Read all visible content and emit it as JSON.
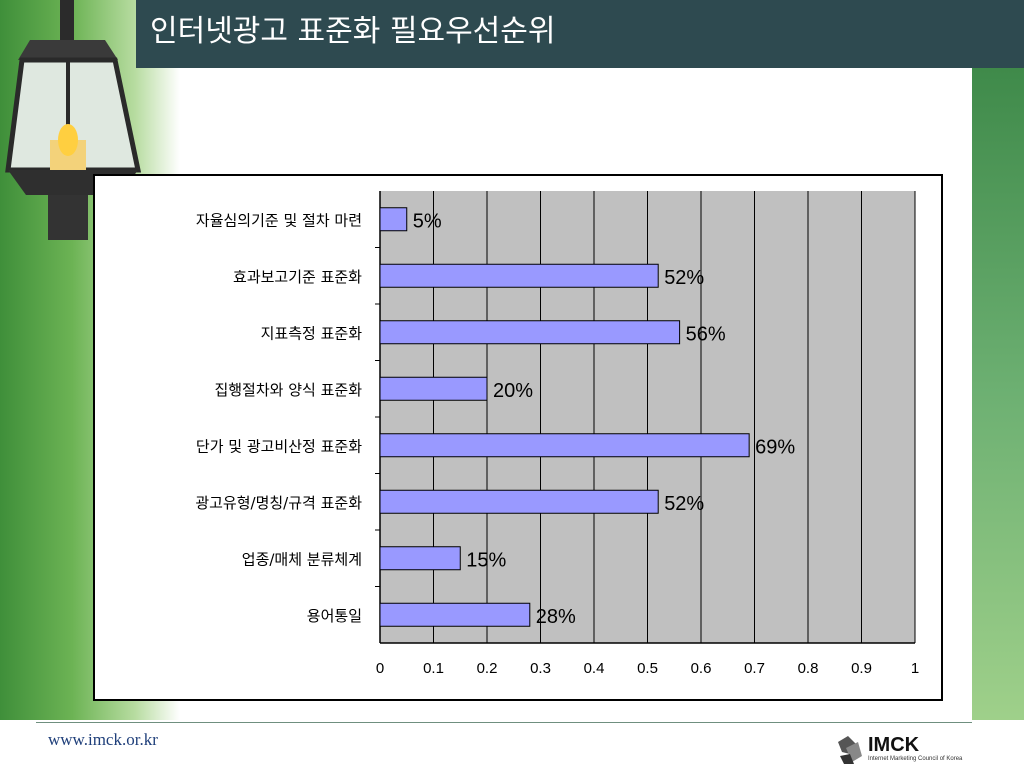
{
  "slide": {
    "title": "인터넷광고 표준화 필요우선순위",
    "footer_url": "www.imck.or.kr",
    "logo_text": "IMCK",
    "logo_subtitle": "Internet Marketing Council of Korea"
  },
  "chart_data": {
    "type": "bar",
    "orientation": "horizontal",
    "categories": [
      "자율심의기준 및 절차 마련",
      "효과보고기준 표준화",
      "지표측정 표준화",
      "집행절차와 양식 표준화",
      "단가 및 광고비산정 표준화",
      "광고유형/명칭/규격 표준화",
      "업종/매체 분류체계",
      "용어통일"
    ],
    "values": [
      0.05,
      0.52,
      0.56,
      0.2,
      0.69,
      0.52,
      0.15,
      0.28
    ],
    "data_labels": [
      "5%",
      "52%",
      "56%",
      "20%",
      "69%",
      "52%",
      "15%",
      "28%"
    ],
    "x_ticks": [
      "0",
      "0.1",
      "0.2",
      "0.3",
      "0.4",
      "0.5",
      "0.6",
      "0.7",
      "0.8",
      "0.9",
      "1"
    ],
    "xlim": [
      0,
      1
    ],
    "grid": true,
    "bar_color": "#9999ff",
    "plot_background": "#c0c0c0"
  }
}
